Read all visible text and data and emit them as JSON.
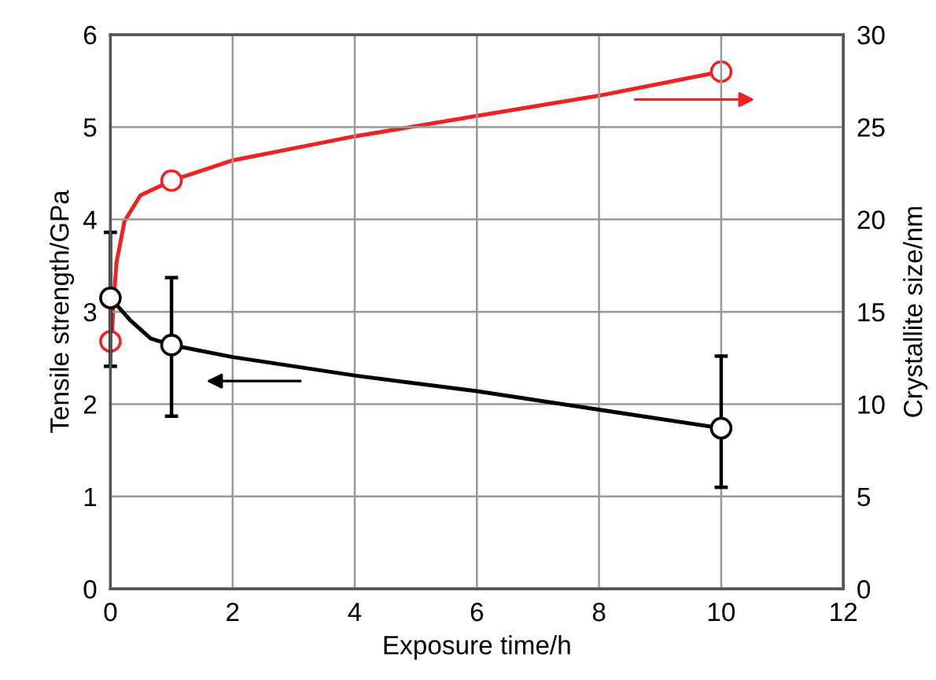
{
  "chart_data": {
    "type": "scatter",
    "xlabel": "Exposure time/h",
    "ylabel": "Tensile strength/GPa",
    "y2label": "Crystallite size/nm",
    "xlim": [
      0,
      12
    ],
    "xticks": [
      0,
      2,
      4,
      6,
      8,
      10,
      12
    ],
    "ylim": [
      0,
      6
    ],
    "yticks": [
      0,
      1,
      2,
      3,
      4,
      5,
      6
    ],
    "y2lim": [
      0,
      30
    ],
    "y2ticks": [
      0,
      5,
      10,
      15,
      20,
      25,
      30
    ],
    "grid": true,
    "series": [
      {
        "type": "line",
        "color": "#000000",
        "marker": "none",
        "x": [
          0,
          0.32,
          0.66,
          1,
          2,
          4,
          6,
          8,
          10
        ],
        "values": [
          3.15,
          2.91,
          2.71,
          2.64,
          2.51,
          2.31,
          2.14,
          1.94,
          1.74
        ]
      },
      {
        "type": "line",
        "axis": "y2",
        "color": "#ee2222",
        "marker": "none",
        "x": [
          0.02,
          0.05,
          0.1,
          0.23,
          0.49,
          1,
          2,
          4,
          6,
          8,
          10
        ],
        "values": [
          13.4,
          15.5,
          17.7,
          19.9,
          21.3,
          22.1,
          23.2,
          24.5,
          25.6,
          26.7,
          28.0
        ]
      },
      {
        "color": "#000000",
        "marker": "circle",
        "x": [
          0,
          1,
          10
        ],
        "values": [
          3.15,
          2.64,
          1.74
        ],
        "errors": [
          [
            2.41,
            3.86
          ],
          [
            1.87,
            3.37
          ],
          [
            1.1,
            2.52
          ]
        ]
      },
      {
        "axis": "y2",
        "color": "#ee2222",
        "marker": "circle",
        "x": [
          0,
          1,
          10
        ],
        "values": [
          13.4,
          22.1,
          28.0
        ]
      }
    ]
  }
}
